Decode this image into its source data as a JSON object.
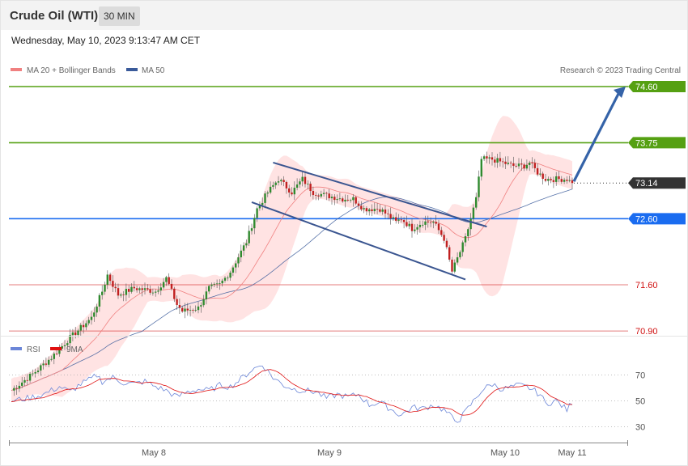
{
  "header": {
    "title": "Crude Oil (WTI)",
    "timeframe": "30 MIN",
    "datetime": "Wednesday, May 10, 2023 9:13:47 AM CET"
  },
  "legend": {
    "ma20": "MA 20 + Bollinger Bands",
    "ma50": "MA 50",
    "ma20_color": "#f08080",
    "ma50_color": "#3a5a9a",
    "credit": "Research © 2023 Trading Central"
  },
  "rsi_legend": {
    "rsi": "RSI",
    "ma9": "9MA",
    "rsi_color": "#6b86d8",
    "ma9_color": "#e01010"
  },
  "chart_data": {
    "type": "candlestick",
    "instrument": "Crude Oil (WTI)",
    "interval": "30 MIN",
    "ylim": [
      69.4,
      75.0
    ],
    "x_ticks": [
      "May 8",
      "May 9",
      "May 10",
      "May 11"
    ],
    "levels": [
      {
        "label": "74.60",
        "value": 74.6,
        "kind": "resistance",
        "color": "#55a012"
      },
      {
        "label": "73.75",
        "value": 73.75,
        "kind": "resistance",
        "color": "#55a012"
      },
      {
        "label": "73.14",
        "value": 73.14,
        "kind": "last",
        "color": "#333333"
      },
      {
        "label": "72.60",
        "value": 72.6,
        "kind": "pivot",
        "color": "#1a6cf0"
      },
      {
        "label": "71.60",
        "value": 71.6,
        "kind": "support",
        "color": "#d01010"
      },
      {
        "label": "70.90",
        "value": 70.9,
        "kind": "support",
        "color": "#d01010"
      }
    ],
    "price_anchors": [
      [
        0,
        70.0
      ],
      [
        8,
        70.25
      ],
      [
        15,
        70.5
      ],
      [
        22,
        70.8
      ],
      [
        26,
        70.95
      ],
      [
        30,
        71.1
      ],
      [
        34,
        71.5
      ],
      [
        36,
        71.75
      ],
      [
        40,
        71.45
      ],
      [
        46,
        71.55
      ],
      [
        54,
        71.5
      ],
      [
        58,
        71.7
      ],
      [
        62,
        71.3
      ],
      [
        64,
        71.2
      ],
      [
        70,
        71.25
      ],
      [
        74,
        71.55
      ],
      [
        78,
        71.6
      ],
      [
        82,
        71.8
      ],
      [
        88,
        72.25
      ],
      [
        92,
        72.75
      ],
      [
        96,
        73.0
      ],
      [
        100,
        73.2
      ],
      [
        105,
        73.0
      ],
      [
        109,
        73.2
      ],
      [
        113,
        73.0
      ],
      [
        118,
        72.95
      ],
      [
        124,
        72.9
      ],
      [
        128,
        72.9
      ],
      [
        132,
        72.75
      ],
      [
        138,
        72.75
      ],
      [
        144,
        72.55
      ],
      [
        146,
        72.6
      ],
      [
        150,
        72.45
      ],
      [
        154,
        72.55
      ],
      [
        158,
        72.55
      ],
      [
        162,
        72.3
      ],
      [
        165,
        71.8
      ],
      [
        167,
        72.0
      ],
      [
        170,
        72.3
      ],
      [
        174,
        72.9
      ],
      [
        176,
        73.5
      ],
      [
        180,
        73.5
      ],
      [
        184,
        73.45
      ],
      [
        188,
        73.4
      ],
      [
        192,
        73.4
      ],
      [
        194,
        73.45
      ],
      [
        197,
        73.3
      ],
      [
        200,
        73.2
      ],
      [
        204,
        73.2
      ],
      [
        208,
        73.2
      ],
      [
        210,
        73.14
      ]
    ],
    "trend_channel": {
      "upper": [
        [
          98,
          73.45
        ],
        [
          178,
          72.48
        ]
      ],
      "lower": [
        [
          90,
          72.85
        ],
        [
          170,
          71.68
        ]
      ]
    },
    "forecast_arrow": {
      "from": [
        210,
        73.14
      ],
      "to": [
        232,
        74.6
      ]
    },
    "rsi": {
      "ylim": [
        20,
        80
      ],
      "levels": [
        70,
        50,
        30
      ],
      "rsi_anchors": [
        [
          0,
          50
        ],
        [
          6,
          52
        ],
        [
          12,
          55
        ],
        [
          18,
          61
        ],
        [
          22,
          57
        ],
        [
          26,
          63
        ],
        [
          30,
          67
        ],
        [
          32,
          70
        ],
        [
          34,
          65
        ],
        [
          38,
          68
        ],
        [
          42,
          64
        ],
        [
          46,
          63
        ],
        [
          50,
          65
        ],
        [
          54,
          61
        ],
        [
          58,
          58
        ],
        [
          62,
          53
        ],
        [
          66,
          57
        ],
        [
          70,
          59
        ],
        [
          74,
          58
        ],
        [
          78,
          62
        ],
        [
          82,
          61
        ],
        [
          86,
          67
        ],
        [
          90,
          74
        ],
        [
          94,
          78
        ],
        [
          98,
          68
        ],
        [
          102,
          62
        ],
        [
          106,
          59
        ],
        [
          110,
          58
        ],
        [
          114,
          57
        ],
        [
          118,
          52
        ],
        [
          122,
          55
        ],
        [
          126,
          53
        ],
        [
          130,
          55
        ],
        [
          134,
          47
        ],
        [
          138,
          49
        ],
        [
          144,
          41
        ],
        [
          146,
          39
        ],
        [
          150,
          45
        ],
        [
          154,
          44
        ],
        [
          158,
          47
        ],
        [
          162,
          43
        ],
        [
          166,
          35
        ],
        [
          168,
          36
        ],
        [
          172,
          47
        ],
        [
          176,
          58
        ],
        [
          180,
          63
        ],
        [
          184,
          59
        ],
        [
          190,
          62
        ],
        [
          194,
          60
        ],
        [
          198,
          55
        ],
        [
          200,
          48
        ],
        [
          204,
          50
        ],
        [
          208,
          43
        ],
        [
          210,
          49
        ]
      ]
    }
  }
}
